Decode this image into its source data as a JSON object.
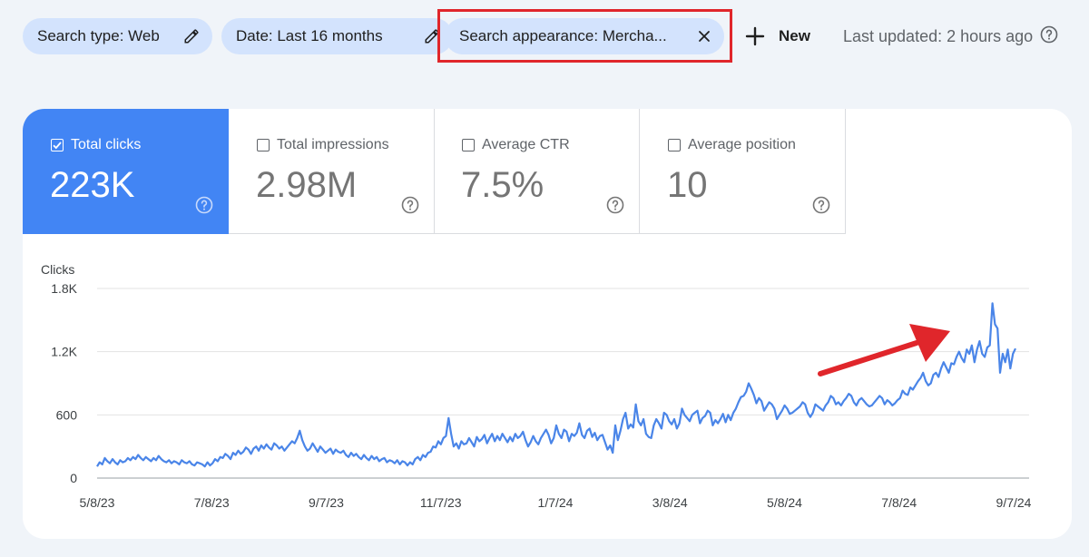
{
  "filters": [
    {
      "label": "Search type: Web",
      "icon": "pencil-icon"
    },
    {
      "label": "Date: Last 16 months",
      "icon": "pencil-icon"
    },
    {
      "label": "Search appearance: Mercha...",
      "icon": "close-icon"
    }
  ],
  "new_button": {
    "label": "New",
    "icon": "plus-icon"
  },
  "last_updated": "Last updated: 2 hours ago",
  "metrics": [
    {
      "label": "Total clicks",
      "value": "223K",
      "checked": true
    },
    {
      "label": "Total impressions",
      "value": "2.98M",
      "checked": false
    },
    {
      "label": "Average CTR",
      "value": "7.5%",
      "checked": false
    },
    {
      "label": "Average position",
      "value": "10",
      "checked": false
    }
  ],
  "colors": {
    "accent": "#4285f4",
    "chip_bg": "#d3e3fd",
    "line": "#4a85e8",
    "highlight": "#e0262b",
    "background": "#f0f4f9"
  },
  "chart_data": {
    "type": "line",
    "ylabel": "Clicks",
    "yticks": [
      "0",
      "600",
      "1.2K",
      "1.8K"
    ],
    "ylim": [
      0,
      1800
    ],
    "xticks": [
      "5/8/23",
      "7/8/23",
      "9/7/23",
      "11/7/23",
      "1/7/24",
      "3/8/24",
      "5/8/24",
      "7/8/24",
      "9/7/24"
    ],
    "grid": true,
    "series": [
      {
        "values": [
          110,
          150,
          130,
          190,
          160,
          140,
          180,
          150,
          130,
          170,
          150,
          160,
          190,
          170,
          200,
          180,
          220,
          190,
          170,
          200,
          180,
          160,
          190,
          170,
          210,
          180,
          160,
          150,
          170,
          140,
          160,
          150,
          130,
          170,
          150,
          140,
          160,
          130,
          120,
          150,
          140,
          130,
          110,
          150,
          120,
          140,
          180,
          160,
          200,
          190,
          230,
          210,
          180,
          240,
          220,
          260,
          230,
          250,
          290,
          270,
          230,
          280,
          300,
          260,
          310,
          280,
          320,
          290,
          270,
          330,
          310,
          280,
          300,
          260,
          290,
          320,
          350,
          330,
          380,
          450,
          360,
          300,
          260,
          280,
          330,
          290,
          250,
          300,
          270,
          240,
          260,
          280,
          230,
          270,
          250,
          240,
          260,
          220,
          200,
          240,
          210,
          230,
          200,
          180,
          220,
          190,
          170,
          210,
          180,
          200,
          160,
          180,
          190,
          150,
          170,
          160,
          140,
          170,
          130,
          160,
          150,
          120,
          150,
          130,
          180,
          200,
          170,
          220,
          200,
          240,
          250,
          300,
          290,
          350,
          320,
          380,
          400,
          570,
          420,
          300,
          330,
          280,
          350,
          320,
          330,
          380,
          340,
          300,
          390,
          350,
          370,
          410,
          330,
          380,
          420,
          350,
          400,
          360,
          420,
          380,
          340,
          390,
          350,
          420,
          380,
          400,
          440,
          360,
          300,
          340,
          400,
          350,
          320,
          380,
          420,
          460,
          410,
          330,
          380,
          500,
          420,
          380,
          460,
          440,
          350,
          420,
          400,
          430,
          520,
          410,
          380,
          450,
          470,
          390,
          430,
          360,
          400,
          410,
          340,
          270,
          310,
          240,
          500,
          360,
          450,
          560,
          620,
          470,
          510,
          480,
          700,
          540,
          500,
          560,
          420,
          390,
          380,
          500,
          560,
          520,
          470,
          620,
          600,
          540,
          510,
          560,
          470,
          520,
          660,
          600,
          570,
          540,
          600,
          620,
          640,
          520,
          570,
          590,
          640,
          620,
          500,
          550,
          520,
          560,
          610,
          530,
          600,
          550,
          620,
          660,
          720,
          770,
          780,
          820,
          900,
          850,
          790,
          710,
          760,
          730,
          640,
          680,
          720,
          700,
          660,
          560,
          600,
          640,
          690,
          660,
          610,
          620,
          640,
          660,
          680,
          720,
          700,
          620,
          580,
          620,
          700,
          680,
          660,
          640,
          690,
          720,
          780,
          760,
          700,
          720,
          690,
          730,
          760,
          800,
          780,
          720,
          690,
          740,
          760,
          730,
          700,
          680,
          690,
          720,
          750,
          780,
          760,
          700,
          740,
          720,
          690,
          710,
          740,
          760,
          830,
          800,
          790,
          860,
          840,
          880,
          920,
          950,
          1000,
          920,
          880,
          900,
          980,
          1000,
          960,
          1040,
          1100,
          1050,
          1000,
          1090,
          1080,
          1150,
          1200,
          1140,
          1100,
          1220,
          1180,
          1260,
          1100,
          1220,
          1300,
          1180,
          1150,
          1240,
          1260,
          1660,
          1460,
          1420,
          1000,
          1180,
          1100,
          1220,
          1040,
          1180,
          1230
        ]
      }
    ]
  }
}
